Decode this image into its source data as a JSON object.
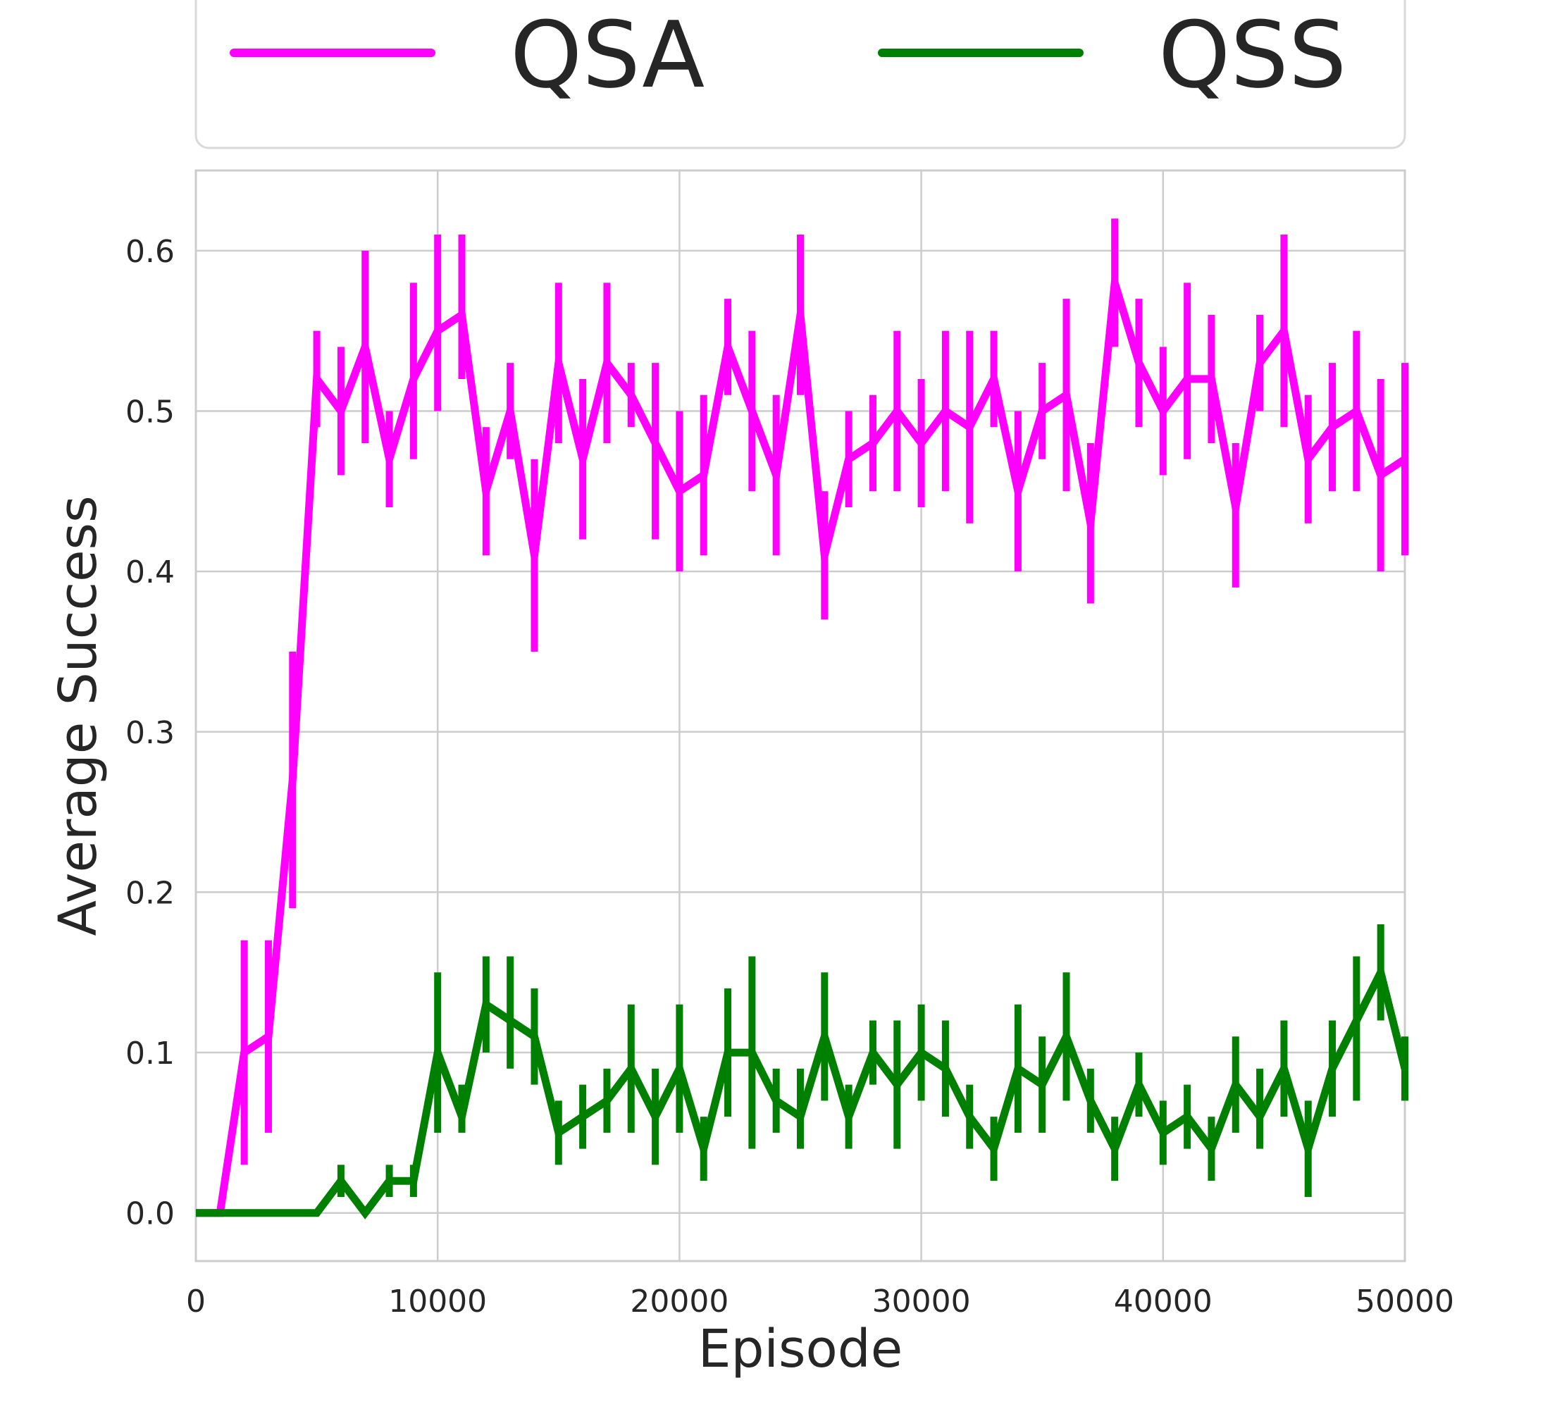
{
  "chart_data": {
    "type": "line",
    "xlabel": "Episode",
    "ylabel": "Average Success",
    "xlim": [
      0,
      50000
    ],
    "ylim": [
      -0.03,
      0.65
    ],
    "x_ticks": [
      0,
      10000,
      20000,
      30000,
      40000,
      50000
    ],
    "x_tick_labels": [
      "0",
      "10000",
      "20000",
      "30000",
      "40000",
      "50000"
    ],
    "y_ticks": [
      0.0,
      0.1,
      0.2,
      0.3,
      0.4,
      0.5,
      0.6
    ],
    "y_tick_labels": [
      "0.0",
      "0.1",
      "0.2",
      "0.3",
      "0.4",
      "0.5",
      "0.6"
    ],
    "grid": true,
    "legend_position": "top",
    "x": [
      0,
      1000,
      2000,
      3000,
      4000,
      5000,
      6000,
      7000,
      8000,
      9000,
      10000,
      11000,
      12000,
      13000,
      14000,
      15000,
      16000,
      17000,
      18000,
      19000,
      20000,
      21000,
      22000,
      23000,
      24000,
      25000,
      26000,
      27000,
      28000,
      29000,
      30000,
      31000,
      32000,
      33000,
      34000,
      35000,
      36000,
      37000,
      38000,
      39000,
      40000,
      41000,
      42000,
      43000,
      44000,
      45000,
      46000,
      47000,
      48000,
      49000,
      50000
    ],
    "series": [
      {
        "name": "QSA",
        "color": "#ff00ff",
        "values": [
          0.0,
          0.0,
          0.1,
          0.11,
          0.27,
          0.52,
          0.5,
          0.54,
          0.47,
          0.52,
          0.55,
          0.56,
          0.45,
          0.5,
          0.41,
          0.53,
          0.47,
          0.53,
          0.51,
          0.48,
          0.45,
          0.46,
          0.54,
          0.5,
          0.46,
          0.56,
          0.41,
          0.47,
          0.48,
          0.5,
          0.48,
          0.5,
          0.49,
          0.52,
          0.45,
          0.5,
          0.51,
          0.43,
          0.58,
          0.53,
          0.5,
          0.52,
          0.52,
          0.44,
          0.53,
          0.55,
          0.47,
          0.49,
          0.5,
          0.46,
          0.47
        ],
        "err_low": [
          0.0,
          0.0,
          0.03,
          0.05,
          0.19,
          0.49,
          0.46,
          0.48,
          0.44,
          0.47,
          0.5,
          0.52,
          0.41,
          0.47,
          0.35,
          0.48,
          0.42,
          0.48,
          0.49,
          0.42,
          0.4,
          0.41,
          0.51,
          0.45,
          0.41,
          0.51,
          0.37,
          0.44,
          0.45,
          0.45,
          0.44,
          0.45,
          0.43,
          0.49,
          0.4,
          0.47,
          0.45,
          0.38,
          0.54,
          0.49,
          0.46,
          0.47,
          0.48,
          0.39,
          0.5,
          0.49,
          0.43,
          0.45,
          0.45,
          0.4,
          0.41
        ],
        "err_high": [
          0.0,
          0.0,
          0.17,
          0.17,
          0.35,
          0.55,
          0.54,
          0.6,
          0.5,
          0.58,
          0.61,
          0.61,
          0.49,
          0.53,
          0.47,
          0.58,
          0.52,
          0.58,
          0.53,
          0.53,
          0.5,
          0.51,
          0.57,
          0.55,
          0.51,
          0.61,
          0.45,
          0.5,
          0.51,
          0.55,
          0.52,
          0.55,
          0.55,
          0.55,
          0.5,
          0.53,
          0.57,
          0.48,
          0.62,
          0.57,
          0.54,
          0.58,
          0.56,
          0.48,
          0.56,
          0.61,
          0.51,
          0.53,
          0.55,
          0.52,
          0.53
        ]
      },
      {
        "name": "QSS",
        "color": "#008000",
        "values": [
          0.0,
          0.0,
          0.0,
          0.0,
          0.0,
          0.0,
          0.02,
          0.0,
          0.02,
          0.02,
          0.1,
          0.06,
          0.13,
          0.12,
          0.11,
          0.05,
          0.06,
          0.07,
          0.09,
          0.06,
          0.09,
          0.04,
          0.1,
          0.1,
          0.07,
          0.06,
          0.11,
          0.06,
          0.1,
          0.08,
          0.1,
          0.09,
          0.06,
          0.04,
          0.09,
          0.08,
          0.11,
          0.07,
          0.04,
          0.08,
          0.05,
          0.06,
          0.04,
          0.08,
          0.06,
          0.09,
          0.04,
          0.09,
          0.12,
          0.15,
          0.09
        ],
        "err_low": [
          0.0,
          0.0,
          0.0,
          0.0,
          0.0,
          0.0,
          0.01,
          0.0,
          0.01,
          0.01,
          0.05,
          0.05,
          0.1,
          0.09,
          0.08,
          0.03,
          0.04,
          0.05,
          0.05,
          0.03,
          0.05,
          0.02,
          0.06,
          0.04,
          0.05,
          0.04,
          0.07,
          0.04,
          0.08,
          0.04,
          0.07,
          0.06,
          0.04,
          0.02,
          0.05,
          0.05,
          0.07,
          0.05,
          0.02,
          0.06,
          0.03,
          0.04,
          0.02,
          0.05,
          0.04,
          0.06,
          0.01,
          0.06,
          0.07,
          0.12,
          0.07
        ],
        "err_high": [
          0.0,
          0.0,
          0.0,
          0.0,
          0.0,
          0.0,
          0.03,
          0.0,
          0.03,
          0.03,
          0.15,
          0.08,
          0.16,
          0.16,
          0.14,
          0.07,
          0.08,
          0.09,
          0.13,
          0.09,
          0.13,
          0.06,
          0.14,
          0.16,
          0.09,
          0.09,
          0.15,
          0.08,
          0.12,
          0.12,
          0.13,
          0.12,
          0.08,
          0.06,
          0.13,
          0.11,
          0.15,
          0.09,
          0.06,
          0.1,
          0.07,
          0.08,
          0.06,
          0.11,
          0.09,
          0.12,
          0.07,
          0.12,
          0.16,
          0.18,
          0.11
        ]
      }
    ]
  }
}
